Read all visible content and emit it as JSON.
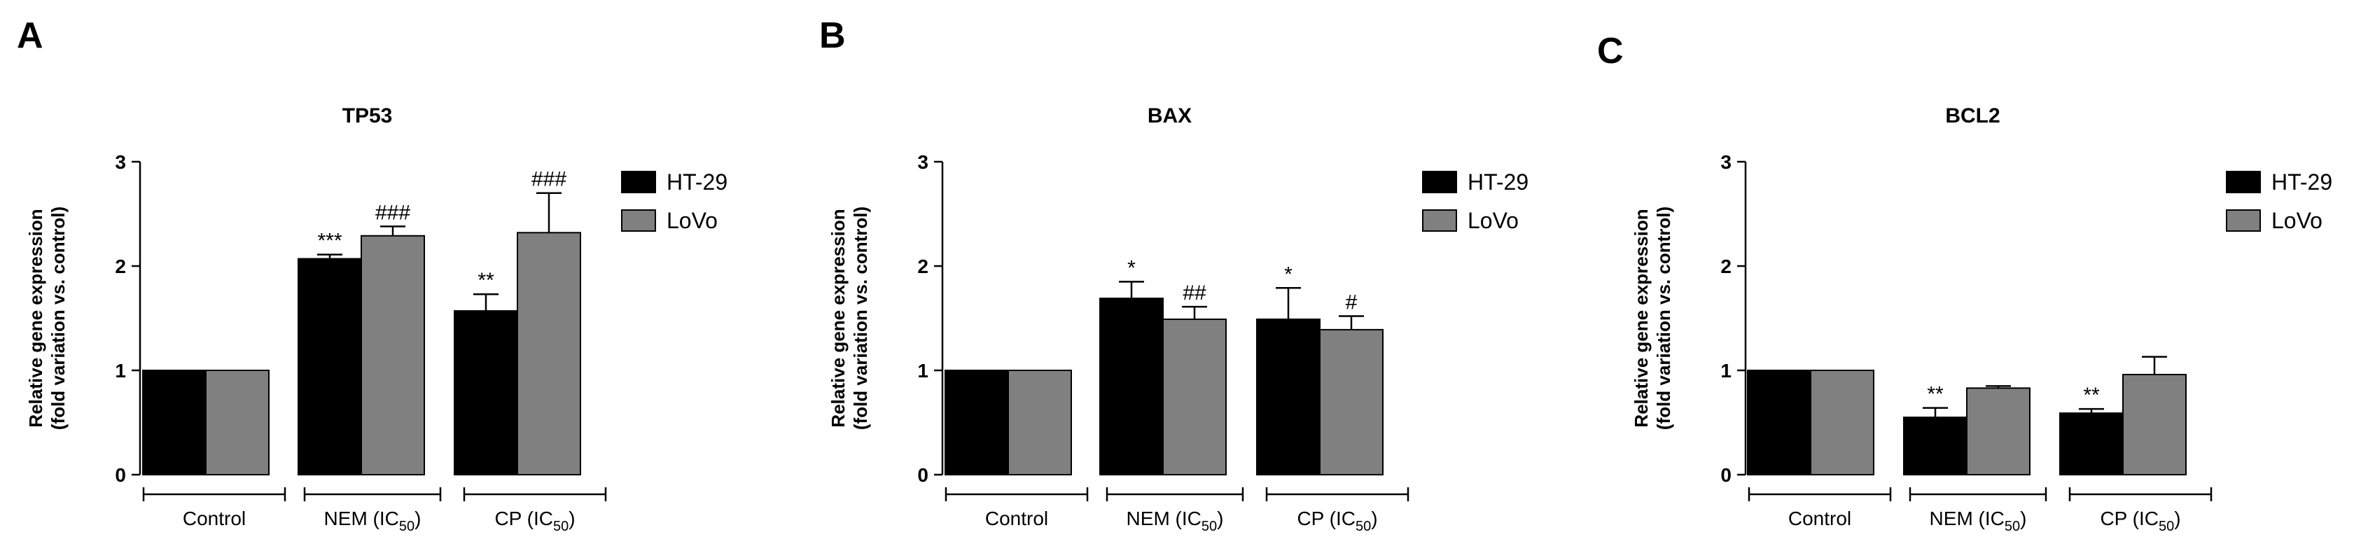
{
  "figure": {
    "sub_label": "50",
    "legend_labels": [
      "HT-29",
      "LoVo"
    ],
    "colors": {
      "HT-29": "#000000",
      "LoVo": "#808080",
      "axis": "#000000"
    }
  },
  "chart_data": [
    {
      "panel_label": "A",
      "type": "bar",
      "title": "TP53",
      "ylabel_lines": [
        "Relative gene expression",
        "(fold variation vs. control)"
      ],
      "ylim": [
        0,
        3
      ],
      "yticks": [
        0,
        1,
        2,
        3
      ],
      "categories": [
        {
          "main": "Control",
          "sub": ""
        },
        {
          "main": "NEM (IC",
          "sub": "50",
          "close": ")"
        },
        {
          "main": "CP (IC",
          "sub": "50",
          "close": ")"
        }
      ],
      "series": [
        {
          "name": "HT-29",
          "values": [
            1.0,
            2.07,
            1.57
          ],
          "errors": [
            0,
            0.04,
            0.16
          ],
          "labels": [
            "",
            "***",
            "**"
          ]
        },
        {
          "name": "LoVo",
          "values": [
            1.0,
            2.29,
            2.32
          ],
          "errors": [
            0,
            0.09,
            0.38
          ],
          "labels": [
            "",
            "###",
            "###"
          ]
        }
      ]
    },
    {
      "panel_label": "B",
      "type": "bar",
      "title": "BAX",
      "ylabel_lines": [
        "Relative gene expression",
        "(fold variation vs. control)"
      ],
      "ylim": [
        0,
        3
      ],
      "yticks": [
        0,
        1,
        2,
        3
      ],
      "categories": [
        {
          "main": "Control",
          "sub": ""
        },
        {
          "main": "NEM (IC",
          "sub": "50",
          "close": ")"
        },
        {
          "main": "CP (IC",
          "sub": "50",
          "close": ")"
        }
      ],
      "series": [
        {
          "name": "HT-29",
          "values": [
            1.0,
            1.69,
            1.49
          ],
          "errors": [
            0,
            0.16,
            0.3
          ],
          "labels": [
            "",
            "*",
            "*"
          ]
        },
        {
          "name": "LoVo",
          "values": [
            1.0,
            1.49,
            1.39
          ],
          "errors": [
            0,
            0.12,
            0.13
          ],
          "labels": [
            "",
            "##",
            "#"
          ]
        }
      ]
    },
    {
      "panel_label": "C",
      "type": "bar",
      "title": "BCL2",
      "ylabel_lines": [
        "Relative gene expression",
        "(fold variation vs. control)"
      ],
      "ylim": [
        0,
        3
      ],
      "yticks": [
        0,
        1,
        2,
        3
      ],
      "categories": [
        {
          "main": "Control",
          "sub": ""
        },
        {
          "main": "NEM (IC",
          "sub": "50",
          "close": ")"
        },
        {
          "main": "CP (IC",
          "sub": "50",
          "close": ")"
        }
      ],
      "series": [
        {
          "name": "HT-29",
          "values": [
            1.0,
            0.55,
            0.59
          ],
          "errors": [
            0,
            0.09,
            0.04
          ],
          "labels": [
            "",
            "**",
            "**"
          ]
        },
        {
          "name": "LoVo",
          "values": [
            1.0,
            0.83,
            0.96
          ],
          "errors": [
            0,
            0.02,
            0.17
          ],
          "labels": [
            "",
            "",
            ""
          ]
        }
      ]
    }
  ]
}
